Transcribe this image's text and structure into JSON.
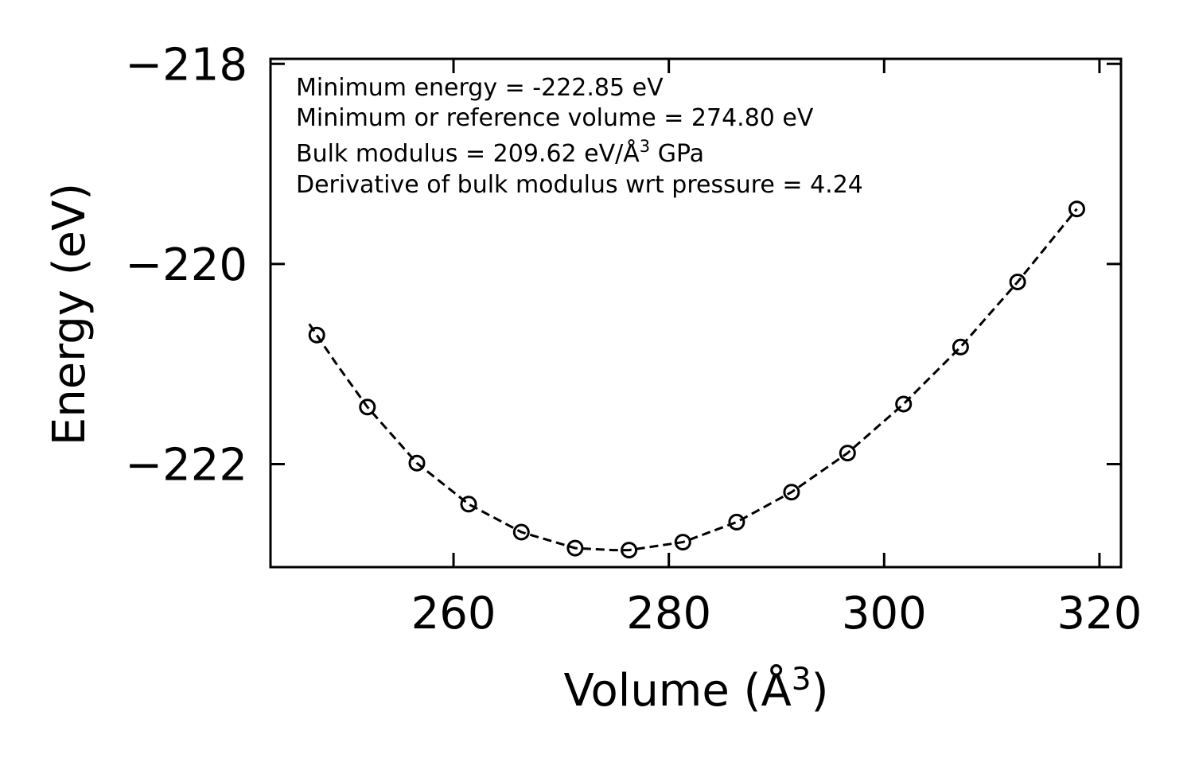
{
  "chart_data": {
    "type": "scatter",
    "title": "",
    "xlabel": "Volume (Å",
    "xlabel_sup": "3",
    "xlabel_close": ")",
    "ylabel": "Energy (eV)",
    "xlim": [
      243,
      322
    ],
    "ylim": [
      -223.03,
      -217.95
    ],
    "xticks": [
      260,
      280,
      300,
      320
    ],
    "xtick_labels": [
      "260",
      "280",
      "300",
      "320"
    ],
    "yticks": [
      -218,
      -220,
      -222
    ],
    "ytick_labels": [
      "−218",
      "−220",
      "−222"
    ],
    "series": [
      {
        "name": "data",
        "style": "open-circle",
        "color": "#000000",
        "x": [
          247.3,
          252.0,
          256.6,
          261.4,
          266.3,
          271.3,
          276.3,
          281.3,
          286.3,
          291.4,
          296.6,
          301.8,
          307.1,
          312.4,
          317.9
        ],
        "y": [
          -220.71,
          -221.43,
          -221.99,
          -222.4,
          -222.68,
          -222.84,
          -222.86,
          -222.78,
          -222.58,
          -222.28,
          -221.89,
          -221.4,
          -220.83,
          -220.18,
          -219.45
        ]
      },
      {
        "name": "fit",
        "style": "dashed-line",
        "color": "#000000",
        "x": [
          246.6,
          249.0,
          252.0,
          256.6,
          261.4,
          266.3,
          271.3,
          274.8,
          276.3,
          281.3,
          286.3,
          291.4,
          296.6,
          301.8,
          307.1,
          312.4,
          317.9
        ],
        "y": [
          -220.6,
          -220.98,
          -221.43,
          -221.99,
          -222.4,
          -222.68,
          -222.84,
          -222.86,
          -222.86,
          -222.78,
          -222.58,
          -222.28,
          -221.89,
          -221.4,
          -220.83,
          -220.18,
          -219.45
        ]
      }
    ],
    "annotations": [
      "Minimum energy = -222.85 eV",
      "Minimum or reference volume = 274.80 eV",
      "Bulk modulus = 209.62 eV/Å",
      "3",
      " GPa",
      "Derivative of bulk modulus wrt pressure = 4.24"
    ],
    "grid": false,
    "legend": "none"
  }
}
